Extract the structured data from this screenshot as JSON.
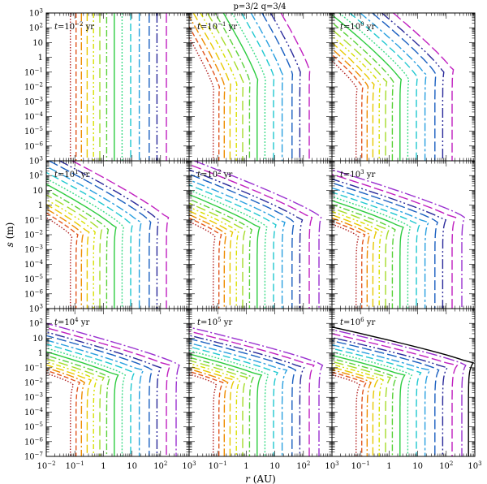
{
  "chart_data": {
    "type": "line",
    "title": "p=3/2   q=3/4",
    "xlabel": "r",
    "xlabel_unit": "(AU)",
    "ylabel": "s",
    "ylabel_unit": "(m)",
    "x_scale": "log",
    "y_scale": "log",
    "xlim": [
      0.01,
      1000
    ],
    "ylim": [
      1e-07,
      1000
    ],
    "x_ticks": [
      {
        "value": 0.01,
        "base": "10",
        "exp": "−2"
      },
      {
        "value": 0.1,
        "base": "10",
        "exp": "−1"
      },
      {
        "value": 1,
        "base": "1",
        "exp": ""
      },
      {
        "value": 10,
        "base": "10",
        "exp": ""
      },
      {
        "value": 100,
        "base": "10",
        "exp": "2"
      },
      {
        "value": 1000,
        "base": "10",
        "exp": "3"
      }
    ],
    "y_ticks": [
      {
        "value": 1e-07,
        "base": "10",
        "exp": "−7"
      },
      {
        "value": 1e-06,
        "base": "10",
        "exp": "−6"
      },
      {
        "value": 1e-05,
        "base": "10",
        "exp": "−5"
      },
      {
        "value": 0.0001,
        "base": "10",
        "exp": "−4"
      },
      {
        "value": 0.001,
        "base": "10",
        "exp": "−3"
      },
      {
        "value": 0.01,
        "base": "10",
        "exp": "−2"
      },
      {
        "value": 0.1,
        "base": "10",
        "exp": "−1"
      },
      {
        "value": 1,
        "base": "1",
        "exp": ""
      },
      {
        "value": 10,
        "base": "10",
        "exp": ""
      },
      {
        "value": 100,
        "base": "10",
        "exp": "2"
      },
      {
        "value": 1000,
        "base": "10",
        "exp": "3"
      }
    ],
    "grid": false,
    "contour_levels": [
      {
        "r": 0.07,
        "color": "#b22222",
        "dash": "1.5,2"
      },
      {
        "r": 0.11,
        "color": "#e2561f",
        "dash": "6,3"
      },
      {
        "r": 0.17,
        "color": "#ee8c00",
        "dash": "10,3,2,3"
      },
      {
        "r": 0.27,
        "color": "#e8c800",
        "dash": "10,4"
      },
      {
        "r": 0.45,
        "color": "#d9e000",
        "dash": "6,3,2,3,2,3"
      },
      {
        "r": 0.75,
        "color": "#a6dc2a",
        "dash": "12,5"
      },
      {
        "r": 1.3,
        "color": "#5bd23a",
        "dash": "2,3,8,3"
      },
      {
        "r": 2.4,
        "color": "#2ecc40",
        "dash": ""
      },
      {
        "r": 4.5,
        "color": "#3ddc88",
        "dash": "2,2"
      },
      {
        "r": 9.0,
        "color": "#20c8d0",
        "dash": "9,4"
      },
      {
        "r": 18.0,
        "color": "#2aa0e0",
        "dash": "10,3,3,3"
      },
      {
        "r": 40.0,
        "color": "#1a5fc0",
        "dash": "12,4"
      },
      {
        "r": 75.0,
        "color": "#2a2a9a",
        "dash": "12,3,2,3,2,3"
      },
      {
        "r": 160.0,
        "color": "#c020c0",
        "dash": "12,4"
      },
      {
        "r": 350.0,
        "color": "#9a30d0",
        "dash": "14,3,2,3"
      },
      {
        "r": 600.0,
        "color": "#000000",
        "dash": ""
      }
    ],
    "panels": [
      {
        "t_base": "10",
        "t_exp": "−2",
        "unit": "yr",
        "n_levels": 14,
        "bend": 0
      },
      {
        "t_base": "10",
        "t_exp": "−1",
        "unit": "yr",
        "n_levels": 14,
        "bend": 0.12
      },
      {
        "t_base": "10",
        "t_exp": "0",
        "unit": "yr",
        "n_levels": 14,
        "bend": 0.25
      },
      {
        "t_base": "10",
        "t_exp": "1",
        "unit": "yr",
        "n_levels": 14,
        "bend": 0.4
      },
      {
        "t_base": "10",
        "t_exp": "2",
        "unit": "yr",
        "n_levels": 15,
        "bend": 0.55
      },
      {
        "t_base": "10",
        "t_exp": "3",
        "unit": "yr",
        "n_levels": 15,
        "bend": 0.7
      },
      {
        "t_base": "10",
        "t_exp": "4",
        "unit": "yr",
        "n_levels": 15,
        "bend": 0.82
      },
      {
        "t_base": "10",
        "t_exp": "5",
        "unit": "yr",
        "n_levels": 15,
        "bend": 0.92
      },
      {
        "t_base": "10",
        "t_exp": "6",
        "unit": "yr",
        "n_levels": 16,
        "bend": 1.0
      }
    ]
  }
}
